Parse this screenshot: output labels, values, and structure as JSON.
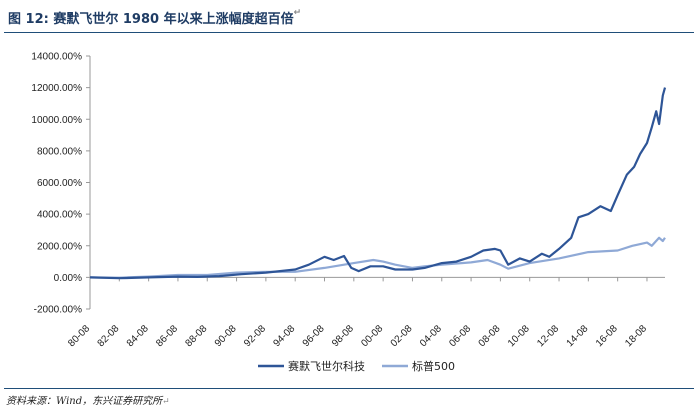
{
  "header": {
    "title": "图 12: 赛默飞世尔 1980 年以来上涨幅度超百倍",
    "return_mark": "↵"
  },
  "footer": {
    "source": "资料来源：Wind，东兴证券研究所",
    "return_mark": "↵"
  },
  "colors": {
    "rule": "#1f4e79",
    "tmo": "#2e5597",
    "spx": "#8fa9d6",
    "grid": "#d9d9d9"
  },
  "chart_data": {
    "type": "line",
    "title": "",
    "xlabel": "",
    "ylabel": "",
    "ylim": [
      -2000,
      14000
    ],
    "yticks": [
      "-2000.00%",
      "0.00%",
      "2000.00%",
      "4000.00%",
      "6000.00%",
      "8000.00%",
      "10000.00%",
      "12000.00%",
      "14000.00%"
    ],
    "ytick_values": [
      -2000,
      0,
      2000,
      4000,
      6000,
      8000,
      10000,
      12000,
      14000
    ],
    "xlim": [
      1980.67,
      2019.9
    ],
    "xticks": [
      "80-08",
      "82-08",
      "84-08",
      "86-08",
      "88-08",
      "90-08",
      "92-08",
      "94-08",
      "96-08",
      "98-08",
      "00-08",
      "02-08",
      "04-08",
      "06-08",
      "08-08",
      "10-08",
      "12-08",
      "14-08",
      "16-08",
      "18-08"
    ],
    "xtick_values": [
      1980.67,
      1982.67,
      1984.67,
      1986.67,
      1988.67,
      1990.67,
      1992.67,
      1994.67,
      1996.67,
      1998.67,
      2000.67,
      2002.67,
      2004.67,
      2006.67,
      2008.67,
      2010.67,
      2012.67,
      2014.67,
      2016.67,
      2018.67
    ],
    "grid": false,
    "legend_position": "bottom",
    "series": [
      {
        "name": "赛默飞世尔科技",
        "x": [
          1980.67,
          1982.67,
          1984.67,
          1986.67,
          1988.0,
          1989.5,
          1991.0,
          1992.67,
          1994.67,
          1995.6,
          1996.67,
          1997.3,
          1998.0,
          1998.5,
          1999.0,
          1999.8,
          2000.67,
          2001.5,
          2002.67,
          2003.5,
          2004.67,
          2005.67,
          2006.67,
          2007.5,
          2008.3,
          2008.67,
          2009.2,
          2010.0,
          2010.67,
          2011.5,
          2012.0,
          2012.67,
          2013.5,
          2014.0,
          2014.67,
          2015.5,
          2016.2,
          2016.67,
          2017.3,
          2017.8,
          2018.2,
          2018.67,
          2019.0,
          2019.3,
          2019.5,
          2019.75,
          2019.9
        ],
        "values": [
          0,
          -50,
          0,
          50,
          30,
          80,
          200,
          300,
          500,
          800,
          1300,
          1100,
          1350,
          600,
          400,
          700,
          700,
          500,
          500,
          600,
          900,
          1000,
          1300,
          1700,
          1800,
          1700,
          800,
          1200,
          1000,
          1500,
          1300,
          1800,
          2500,
          3800,
          4000,
          4500,
          4200,
          5200,
          6500,
          7000,
          7800,
          8500,
          9500,
          10500,
          9700,
          11500,
          12000
        ]
      },
      {
        "name": "标普500",
        "x": [
          1980.67,
          1982.67,
          1984.67,
          1986.67,
          1988.67,
          1990.67,
          1992.67,
          1994.67,
          1996.67,
          1998.67,
          2000.0,
          2000.67,
          2001.5,
          2002.67,
          2003.5,
          2004.67,
          2006.67,
          2007.8,
          2008.67,
          2009.2,
          2010.67,
          2012.67,
          2014.67,
          2016.67,
          2017.67,
          2018.67,
          2019.0,
          2019.5,
          2019.75,
          2019.9
        ],
        "values": [
          0,
          -20,
          50,
          150,
          150,
          300,
          350,
          350,
          600,
          900,
          1100,
          1000,
          800,
          600,
          700,
          800,
          950,
          1100,
          800,
          550,
          900,
          1200,
          1600,
          1700,
          2000,
          2200,
          2000,
          2500,
          2300,
          2500
        ]
      }
    ]
  }
}
